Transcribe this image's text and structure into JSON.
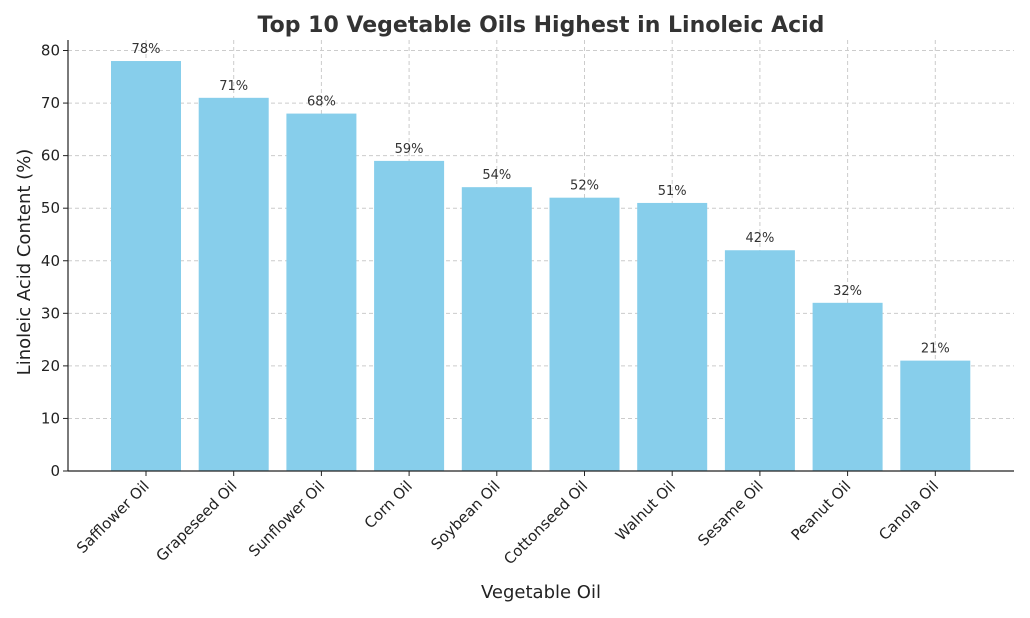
{
  "chart_data": {
    "type": "bar",
    "title": "Top 10 Vegetable Oils Highest in Linoleic Acid",
    "xlabel": "Vegetable Oil",
    "ylabel": "Linoleic Acid Content (%)",
    "categories": [
      "Safflower Oil",
      "Grapeseed Oil",
      "Sunflower Oil",
      "Corn Oil",
      "Soybean Oil",
      "Cottonseed Oil",
      "Walnut Oil",
      "Sesame Oil",
      "Peanut Oil",
      "Canola Oil"
    ],
    "values": [
      78,
      71,
      68,
      59,
      54,
      52,
      51,
      42,
      32,
      21
    ],
    "data_labels": [
      "78%",
      "71%",
      "68%",
      "59%",
      "54%",
      "52%",
      "51%",
      "42%",
      "32%",
      "21%"
    ],
    "ylim": [
      0,
      82
    ],
    "yticks": [
      0,
      10,
      20,
      30,
      40,
      50,
      60,
      70,
      80
    ],
    "grid": true,
    "bar_color": "#87ceeb"
  }
}
